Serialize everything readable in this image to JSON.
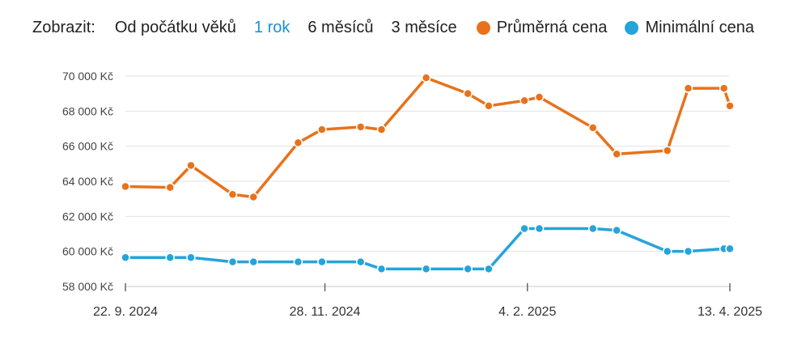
{
  "controls": {
    "label": "Zobrazit:",
    "ranges": [
      "Od počátku věků",
      "1 rok",
      "6 měsíců",
      "3 měsíce"
    ],
    "active_range": "1 rok"
  },
  "colors": {
    "average": "#e8721c",
    "minimum": "#25a4da",
    "grid": "#e3e3e3",
    "active": "#1a8fd6"
  },
  "chart_data": {
    "type": "line",
    "ylim": [
      58000,
      70000
    ],
    "ytick_values": [
      58000,
      60000,
      62000,
      64000,
      66000,
      68000,
      70000
    ],
    "ytick_labels": [
      "58 000 Kč",
      "60 000 Kč",
      "62 000 Kč",
      "64 000 Kč",
      "66 000 Kč",
      "68 000 Kč",
      "70 000 Kč"
    ],
    "xlim": [
      "2024-09-22",
      "2025-04-13"
    ],
    "xtick_values": [
      "2024-09-22",
      "2024-11-28",
      "2025-02-04",
      "2025-04-13"
    ],
    "xtick_labels": [
      "22. 9. 2024",
      "28. 11. 2024",
      "4. 2. 2025",
      "13. 4. 2025"
    ],
    "grid": true,
    "legend_position": "top",
    "series": [
      {
        "name": "Průměrná cena",
        "color": "#e8721c",
        "points": [
          [
            "2024-09-22",
            63700
          ],
          [
            "2024-10-07",
            63650
          ],
          [
            "2024-10-14",
            64900
          ],
          [
            "2024-10-28",
            63250
          ],
          [
            "2024-11-04",
            63100
          ],
          [
            "2024-11-19",
            66200
          ],
          [
            "2024-11-27",
            66950
          ],
          [
            "2024-12-10",
            67100
          ],
          [
            "2024-12-17",
            66950
          ],
          [
            "2025-01-01",
            69900
          ],
          [
            "2025-01-15",
            69000
          ],
          [
            "2025-01-22",
            68300
          ],
          [
            "2025-02-03",
            68600
          ],
          [
            "2025-02-08",
            68800
          ],
          [
            "2025-02-26",
            67050
          ],
          [
            "2025-03-06",
            65550
          ],
          [
            "2025-03-23",
            65750
          ],
          [
            "2025-03-30",
            69300
          ],
          [
            "2025-04-11",
            69300
          ],
          [
            "2025-04-13",
            68300
          ]
        ]
      },
      {
        "name": "Minimální cena",
        "color": "#25a4da",
        "points": [
          [
            "2024-09-22",
            59650
          ],
          [
            "2024-10-07",
            59650
          ],
          [
            "2024-10-14",
            59650
          ],
          [
            "2024-10-28",
            59400
          ],
          [
            "2024-11-04",
            59400
          ],
          [
            "2024-11-19",
            59400
          ],
          [
            "2024-11-27",
            59400
          ],
          [
            "2024-12-10",
            59400
          ],
          [
            "2024-12-17",
            59000
          ],
          [
            "2025-01-01",
            59000
          ],
          [
            "2025-01-15",
            59000
          ],
          [
            "2025-01-22",
            59000
          ],
          [
            "2025-02-03",
            61300
          ],
          [
            "2025-02-08",
            61300
          ],
          [
            "2025-02-26",
            61300
          ],
          [
            "2025-03-06",
            61200
          ],
          [
            "2025-03-23",
            60000
          ],
          [
            "2025-03-30",
            60000
          ],
          [
            "2025-04-11",
            60150
          ],
          [
            "2025-04-13",
            60150
          ]
        ]
      }
    ]
  }
}
